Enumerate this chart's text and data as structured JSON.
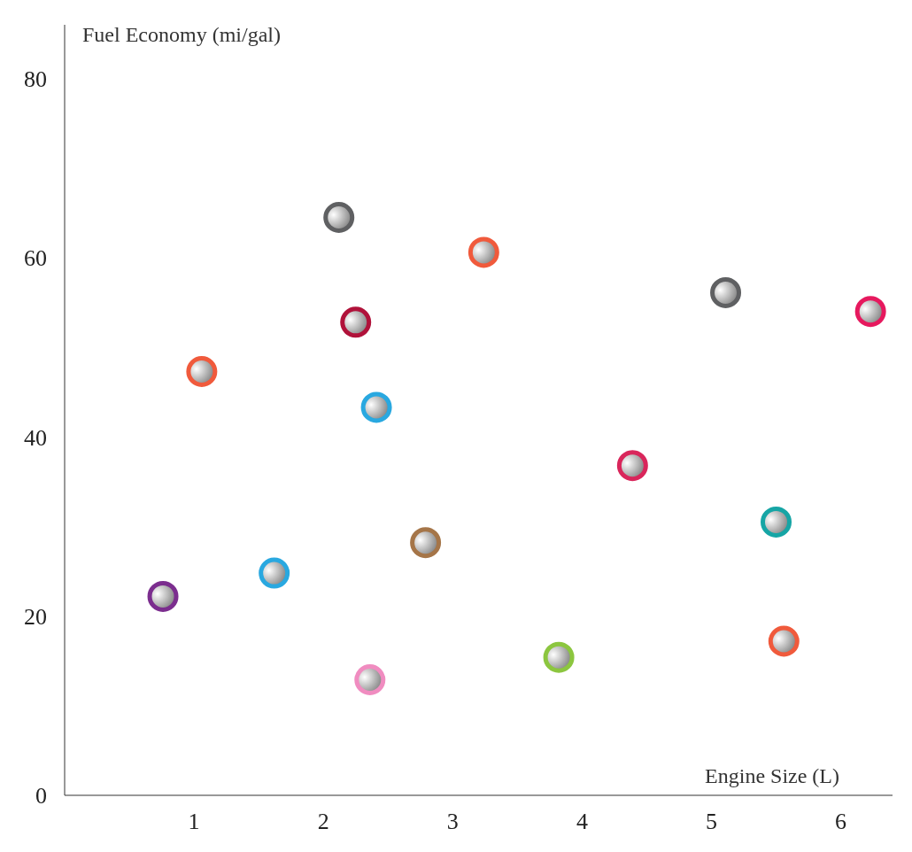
{
  "chart_data": {
    "type": "scatter",
    "xlabel": "Engine Size (L)",
    "ylabel": "Fuel Economy (mi/gal)",
    "x": [
      0.76,
      1.06,
      1.62,
      2.12,
      2.25,
      2.41,
      2.36,
      2.79,
      3.24,
      3.82,
      4.39,
      5.11,
      5.5,
      5.56,
      6.23
    ],
    "values": [
      22.2,
      47.3,
      24.8,
      64.5,
      52.8,
      43.3,
      12.9,
      28.2,
      60.6,
      15.4,
      36.8,
      56.1,
      30.5,
      17.2,
      54
    ],
    "colors": [
      "#7b2d8e",
      "#f05a3c",
      "#29a8e0",
      "#5f6062",
      "#b0123a",
      "#29a8e0",
      "#f08cc0",
      "#a57548",
      "#f05a3c",
      "#8cc63f",
      "#d9265b",
      "#5f6062",
      "#16a5a5",
      "#f05a3c",
      "#e6195e"
    ],
    "xlim": [
      0,
      6.4
    ],
    "ylim": [
      0,
      86
    ],
    "xticks": [
      1,
      2,
      3,
      4,
      5,
      6
    ],
    "yticks": [
      0,
      20,
      40,
      60,
      80
    ],
    "marker": "circle"
  }
}
